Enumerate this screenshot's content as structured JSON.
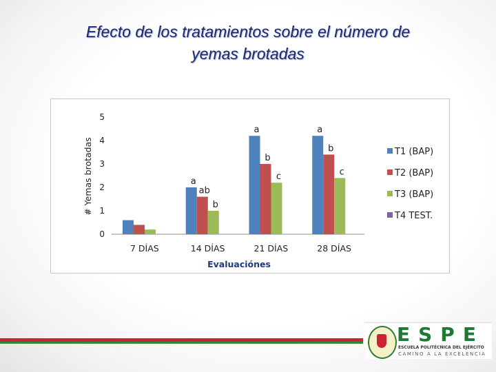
{
  "slide": {
    "title_line1": "Efecto de los tratamientos sobre el número de",
    "title_line2": "yemas brotadas"
  },
  "chart_data": {
    "type": "bar",
    "categories": [
      "7 DÍAS",
      "14 DÍAS",
      "21 DÍAS",
      "28 DÍAS"
    ],
    "xlabel": "Evaluaciónes",
    "ylabel": "# Yemas  brotadas",
    "ylim": [
      0,
      5
    ],
    "yticks": [
      0,
      1,
      2,
      3,
      4,
      5
    ],
    "grid": false,
    "legend_position": "right",
    "series": [
      {
        "name": "T1  (BAP)",
        "color": "#4f81bd",
        "values": [
          0.6,
          2.0,
          4.2,
          4.2
        ],
        "labels": [
          "",
          "a",
          "a",
          "a"
        ]
      },
      {
        "name": "T2  (BAP)",
        "color": "#c0504d",
        "values": [
          0.4,
          1.6,
          3.0,
          3.4
        ],
        "labels": [
          "",
          "ab",
          "b",
          "b"
        ]
      },
      {
        "name": "T3  (BAP)",
        "color": "#9bbb59",
        "values": [
          0.2,
          1.0,
          2.2,
          2.4
        ],
        "labels": [
          "",
          "b",
          "c",
          "c"
        ]
      },
      {
        "name": "T4 TEST.",
        "color": "#8064a2",
        "values": [
          0,
          0,
          0,
          0
        ],
        "labels": [
          "",
          "",
          "",
          ""
        ]
      }
    ]
  },
  "footer": {
    "logo_name": "ESPE",
    "logo_subtitle": "ESCUELA POLITÉCNICA DEL EJÉRCITO",
    "logo_motto": "CAMINO A LA EXCELENCIA"
  }
}
